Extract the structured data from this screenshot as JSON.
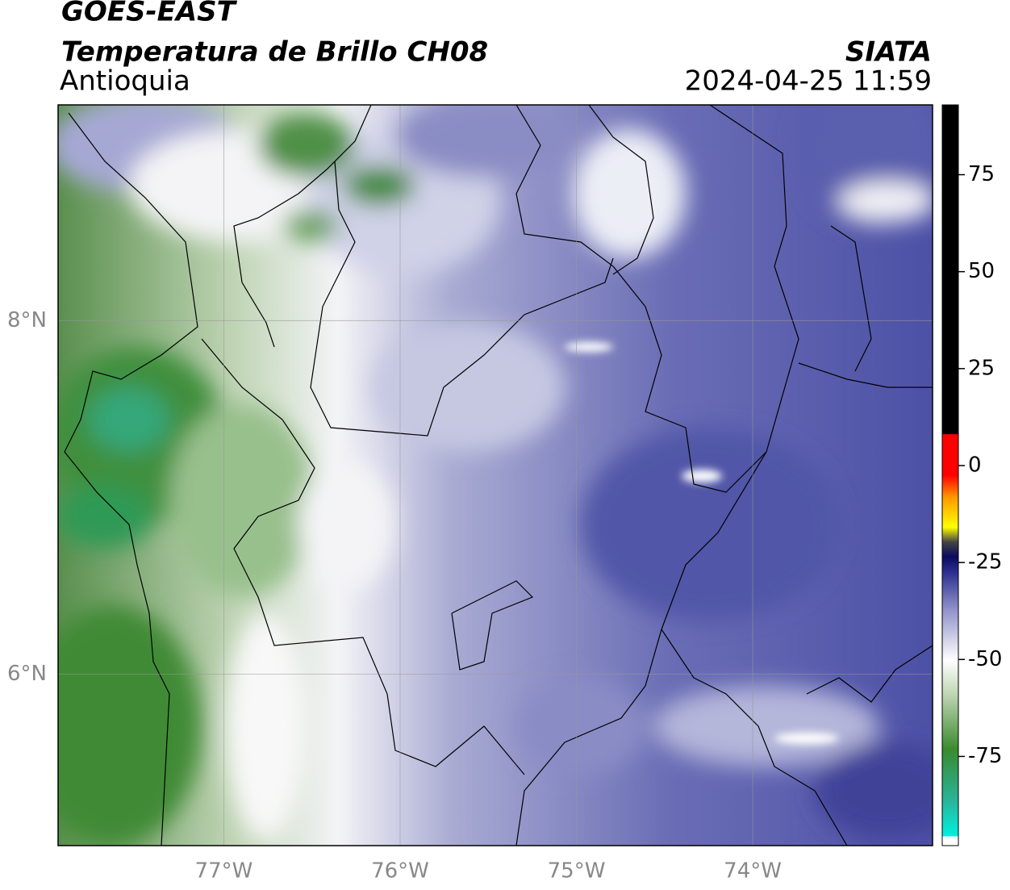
{
  "header": {
    "title": "GOES-EAST",
    "subtitle": "Temperatura de Brillo CH08",
    "region": "Antioquia",
    "source": "SIATA",
    "timestamp": "2024-04-25 11:59"
  },
  "map_data": {
    "xlim": [
      -77.94,
      -72.98
    ],
    "ylim": [
      5.03,
      9.22
    ],
    "xticks": [
      {
        "value": -77,
        "label": "77°W"
      },
      {
        "value": -76,
        "label": "76°W"
      },
      {
        "value": -75,
        "label": "75°W"
      },
      {
        "value": -74,
        "label": "74°W"
      }
    ],
    "yticks": [
      {
        "value": 8,
        "label": "8°N"
      },
      {
        "value": 6,
        "label": "6°N"
      }
    ]
  },
  "colorbar": {
    "clim": [
      -98,
      93
    ],
    "ticks": [
      75,
      50,
      25,
      0,
      -25,
      -50,
      -75
    ]
  }
}
